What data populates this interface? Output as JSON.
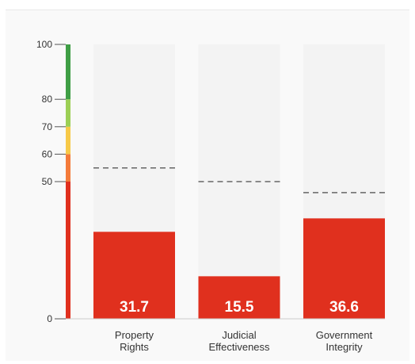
{
  "chart_data": {
    "type": "bar",
    "ylim": [
      0,
      100
    ],
    "yticks": [
      0,
      50,
      60,
      70,
      80,
      100
    ],
    "scale_bands": [
      {
        "from": 0,
        "to": 50,
        "color": "#e0301e"
      },
      {
        "from": 50,
        "to": 60,
        "color": "#f47b3a"
      },
      {
        "from": 60,
        "to": 70,
        "color": "#f7c948"
      },
      {
        "from": 70,
        "to": 80,
        "color": "#9ccf55"
      },
      {
        "from": 80,
        "to": 100,
        "color": "#3f9e45"
      }
    ],
    "categories": [
      [
        "Property",
        "Rights"
      ],
      [
        "Judicial",
        "Effectiveness"
      ],
      [
        "Government",
        "Integrity"
      ]
    ],
    "values": [
      31.7,
      15.5,
      36.6
    ],
    "value_labels": [
      "31.7",
      "15.5",
      "36.6"
    ],
    "reference_values": [
      55,
      50,
      46
    ],
    "colors": {
      "bar": "#e0301e",
      "background_bar": "#f3f3f3",
      "reference_line": "#666666"
    }
  }
}
